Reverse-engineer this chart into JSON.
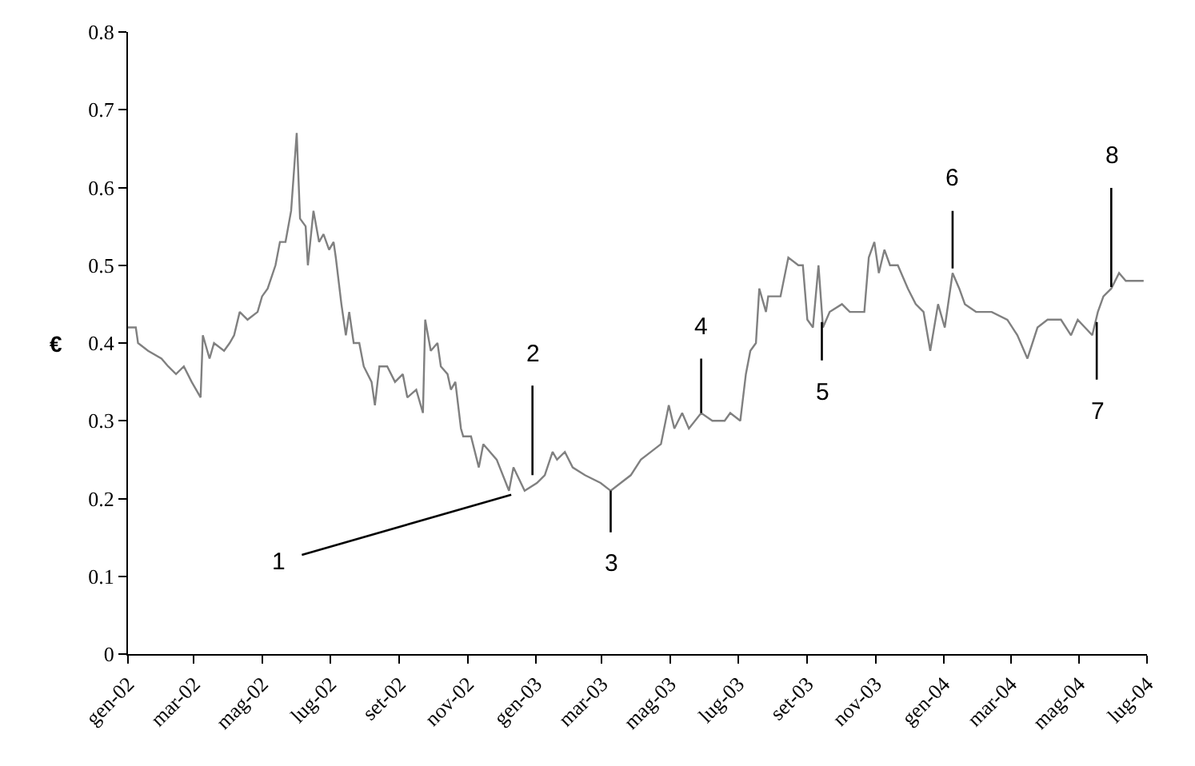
{
  "chart_data": {
    "type": "line",
    "ylabel": "€",
    "x": [
      "2002-01-01",
      "2002-01-08",
      "2002-01-10",
      "2002-01-19",
      "2002-01-31",
      "2002-02-06",
      "2002-02-13",
      "2002-02-20",
      "2002-02-27",
      "2002-03-03",
      "2002-03-07",
      "2002-03-09",
      "2002-03-15",
      "2002-03-19",
      "2002-03-28",
      "2002-04-02",
      "2002-04-06",
      "2002-04-11",
      "2002-04-18",
      "2002-04-27",
      "2002-05-01",
      "2002-05-06",
      "2002-05-13",
      "2002-05-17",
      "2002-05-22",
      "2002-05-27",
      "2002-06-01",
      "2002-06-04",
      "2002-06-09",
      "2002-06-11",
      "2002-06-16",
      "2002-06-21",
      "2002-06-25",
      "2002-06-30",
      "2002-07-04",
      "2002-07-06",
      "2002-07-11",
      "2002-07-15",
      "2002-07-18",
      "2002-07-22",
      "2002-07-27",
      "2002-07-31",
      "2002-08-07",
      "2002-08-10",
      "2002-08-14",
      "2002-08-21",
      "2002-08-28",
      "2002-09-04",
      "2002-09-08",
      "2002-09-16",
      "2002-09-22",
      "2002-09-24",
      "2002-09-29",
      "2002-10-05",
      "2002-10-08",
      "2002-10-14",
      "2002-10-17",
      "2002-10-21",
      "2002-10-26",
      "2002-10-28",
      "2002-11-04",
      "2002-11-11",
      "2002-11-15",
      "2002-11-27",
      "2002-12-08",
      "2002-12-12",
      "2002-12-22",
      "2003-01-02",
      "2003-01-09",
      "2003-01-16",
      "2003-01-20",
      "2003-01-27",
      "2003-02-03",
      "2003-02-14",
      "2003-02-28",
      "2003-03-09",
      "2003-03-18",
      "2003-03-27",
      "2003-04-05",
      "2003-04-14",
      "2003-04-23",
      "2003-04-30",
      "2003-05-05",
      "2003-05-12",
      "2003-05-18",
      "2003-05-29",
      "2003-06-08",
      "2003-06-19",
      "2003-06-24",
      "2003-07-03",
      "2003-07-08",
      "2003-07-12",
      "2003-07-17",
      "2003-07-20",
      "2003-07-26",
      "2003-07-28",
      "2003-08-08",
      "2003-08-15",
      "2003-08-24",
      "2003-08-28",
      "2003-09-01",
      "2003-09-06",
      "2003-09-11",
      "2003-09-15",
      "2003-09-21",
      "2003-10-02",
      "2003-10-09",
      "2003-10-22",
      "2003-10-26",
      "2003-10-31",
      "2003-11-04",
      "2003-11-09",
      "2003-11-14",
      "2003-11-21",
      "2003-11-30",
      "2003-12-07",
      "2003-12-14",
      "2003-12-20",
      "2003-12-27",
      "2004-01-02",
      "2004-01-09",
      "2004-01-15",
      "2004-01-20",
      "2004-01-30",
      "2004-02-13",
      "2004-02-27",
      "2004-03-07",
      "2004-03-16",
      "2004-03-25",
      "2004-04-03",
      "2004-04-15",
      "2004-04-24",
      "2004-04-30",
      "2004-05-13",
      "2004-05-18",
      "2004-05-23",
      "2004-05-30",
      "2004-06-06",
      "2004-06-12",
      "2004-06-28"
    ],
    "series": [
      {
        "color": "#808080",
        "values": [
          0.42,
          0.42,
          0.4,
          0.39,
          0.38,
          0.37,
          0.36,
          0.37,
          0.35,
          0.34,
          0.33,
          0.41,
          0.38,
          0.4,
          0.39,
          0.4,
          0.41,
          0.44,
          0.43,
          0.44,
          0.46,
          0.47,
          0.5,
          0.53,
          0.53,
          0.57,
          0.67,
          0.56,
          0.55,
          0.5,
          0.57,
          0.53,
          0.54,
          0.52,
          0.53,
          0.51,
          0.45,
          0.41,
          0.44,
          0.4,
          0.4,
          0.37,
          0.35,
          0.32,
          0.37,
          0.37,
          0.35,
          0.36,
          0.33,
          0.34,
          0.31,
          0.43,
          0.39,
          0.4,
          0.37,
          0.36,
          0.34,
          0.35,
          0.29,
          0.28,
          0.28,
          0.24,
          0.27,
          0.25,
          0.21,
          0.24,
          0.21,
          0.22,
          0.23,
          0.26,
          0.25,
          0.26,
          0.24,
          0.23,
          0.22,
          0.21,
          0.22,
          0.23,
          0.25,
          0.26,
          0.27,
          0.32,
          0.29,
          0.31,
          0.29,
          0.31,
          0.3,
          0.3,
          0.31,
          0.3,
          0.36,
          0.39,
          0.4,
          0.47,
          0.44,
          0.46,
          0.46,
          0.51,
          0.5,
          0.5,
          0.43,
          0.42,
          0.5,
          0.42,
          0.44,
          0.45,
          0.44,
          0.44,
          0.51,
          0.53,
          0.49,
          0.52,
          0.5,
          0.5,
          0.47,
          0.45,
          0.44,
          0.39,
          0.45,
          0.42,
          0.49,
          0.47,
          0.45,
          0.44,
          0.44,
          0.43,
          0.41,
          0.38,
          0.42,
          0.43,
          0.43,
          0.41,
          0.43,
          0.41,
          0.44,
          0.46,
          0.47,
          0.49,
          0.48,
          0.48
        ]
      }
    ],
    "xlim": [
      "2002-01-01",
      "2004-07-01"
    ],
    "xticks": [
      {
        "value": "2002-01-01",
        "label": "gen-02"
      },
      {
        "value": "2002-03-01",
        "label": "mar-02"
      },
      {
        "value": "2002-05-01",
        "label": "mag-02"
      },
      {
        "value": "2002-07-01",
        "label": "lug-02"
      },
      {
        "value": "2002-09-01",
        "label": "set-02"
      },
      {
        "value": "2002-11-01",
        "label": "nov-02"
      },
      {
        "value": "2003-01-01",
        "label": "gen-03"
      },
      {
        "value": "2003-03-01",
        "label": "mar-03"
      },
      {
        "value": "2003-05-01",
        "label": "mag-03"
      },
      {
        "value": "2003-07-01",
        "label": "lug-03"
      },
      {
        "value": "2003-09-01",
        "label": "set-03"
      },
      {
        "value": "2003-11-01",
        "label": "nov-03"
      },
      {
        "value": "2004-01-01",
        "label": "gen-04"
      },
      {
        "value": "2004-03-01",
        "label": "mar-04"
      },
      {
        "value": "2004-05-01",
        "label": "mag-04"
      },
      {
        "value": "2004-07-01",
        "label": "lug-04"
      }
    ],
    "ylim": [
      0,
      0.8
    ],
    "yticks": [
      0,
      0.1,
      0.2,
      0.3,
      0.4,
      0.5,
      0.6,
      0.7,
      0.8
    ],
    "marker": "none",
    "line_style": "solid",
    "annotations": [
      {
        "text": "1",
        "x": "2002-12-10",
        "y": 0.205
      },
      {
        "text": "2",
        "x": "2002-12-29",
        "y": 0.23
      },
      {
        "text": "3",
        "x": "2003-03-09",
        "y": 0.21
      },
      {
        "text": "4",
        "x": "2003-05-29",
        "y": 0.31
      },
      {
        "text": "5",
        "x": "2003-09-14",
        "y": 0.427
      },
      {
        "text": "6",
        "x": "2004-01-09",
        "y": 0.496
      },
      {
        "text": "7",
        "x": "2004-05-17",
        "y": 0.427
      },
      {
        "text": "8",
        "x": "2004-05-30",
        "y": 0.472
      }
    ]
  }
}
